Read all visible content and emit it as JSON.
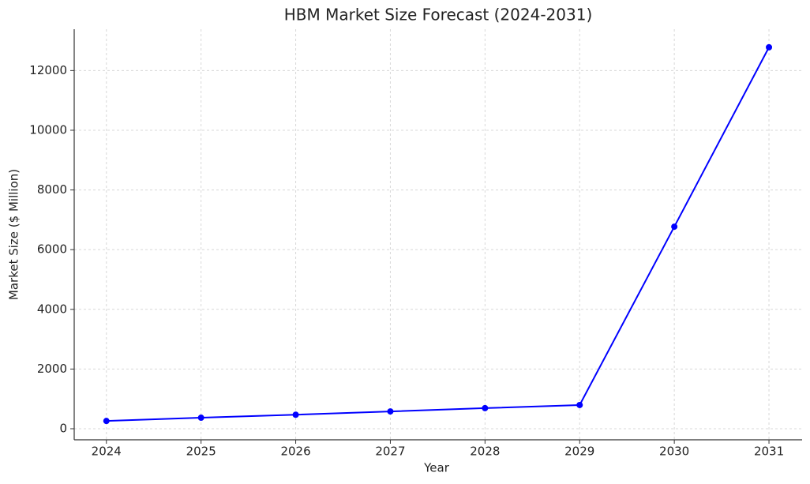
{
  "chart_data": {
    "type": "line",
    "title": "HBM Market Size Forecast (2024-2031)",
    "x_label": "Year",
    "y_label": "Market Size ($ Million)",
    "x": [
      2024,
      2025,
      2026,
      2027,
      2028,
      2029,
      2030,
      2031
    ],
    "series": [
      {
        "color": "#0000ff",
        "values": [
          260,
          370,
          470,
          580,
          690,
          795,
          6770,
          12780
        ]
      }
    ],
    "xlim": [
      2023.66,
      2031.35
    ],
    "xticks": [
      2024,
      2025,
      2026,
      2027,
      2028,
      2029,
      2030,
      2031
    ],
    "ylim": [
      -370,
      13385
    ],
    "yticks": [
      0,
      2000,
      4000,
      6000,
      8000,
      10000,
      12000
    ],
    "grid": true
  }
}
